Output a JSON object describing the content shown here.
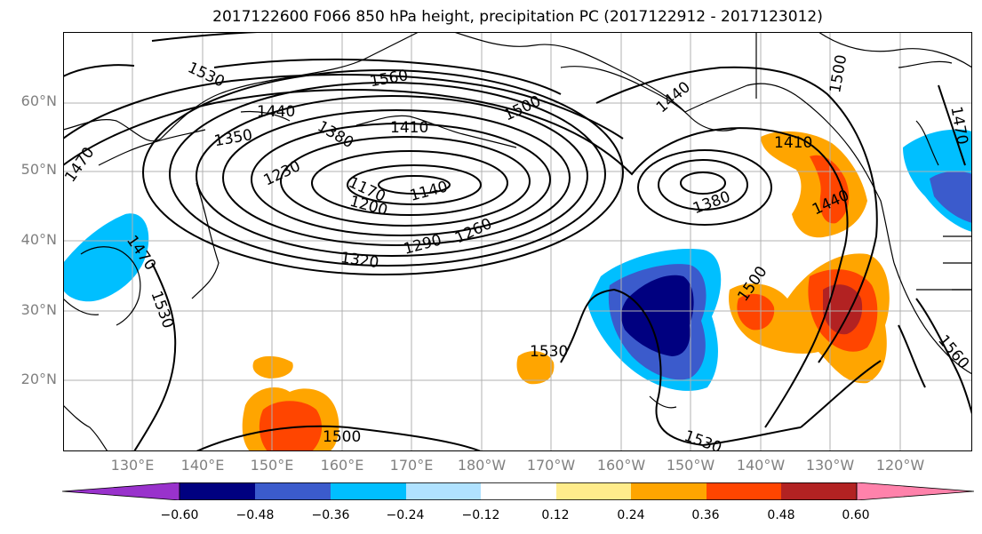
{
  "title": "2017122600 F066 850 hPa height, precipitation PC (2017122912 - 2017123012)",
  "lat_labels": [
    "60°N",
    "50°N",
    "40°N",
    "30°N",
    "20°N"
  ],
  "lon_labels": [
    "130°E",
    "140°E",
    "150°E",
    "160°E",
    "170°E",
    "180°W",
    "170°W",
    "160°W",
    "150°W",
    "140°W",
    "130°W",
    "120°W"
  ],
  "contour_labels": [
    "1530",
    "1560",
    "1500",
    "1440",
    "1500",
    "1470",
    "1440",
    "1350",
    "1380",
    "1410",
    "1230",
    "1170",
    "1140",
    "1200",
    "1260",
    "1290",
    "1320",
    "1410",
    "1380",
    "1440",
    "1500",
    "1470",
    "1530",
    "1530",
    "1500",
    "1530",
    "1560",
    "1470"
  ],
  "colorbar": {
    "ticks": [
      "−0.60",
      "−0.48",
      "−0.36",
      "−0.24",
      "−0.12",
      "0.12",
      "0.24",
      "0.36",
      "0.48",
      "0.60"
    ],
    "colors": [
      "#9932cc",
      "#000080",
      "#3b5bcc",
      "#00bfff",
      "#b0e2ff",
      "#ffffff",
      "#ffec8b",
      "#ffa500",
      "#ff4500",
      "#b22222",
      "#ff82ab"
    ]
  }
}
